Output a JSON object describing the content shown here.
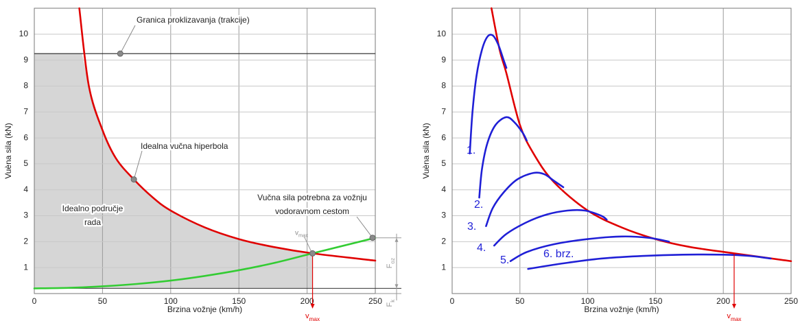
{
  "chart_data": [
    {
      "type": "line",
      "xlabel": "Brzina vožnje (km/h)",
      "ylabel": "Vuèna sila (kN)",
      "xlim": [
        0,
        250
      ],
      "ylim": [
        0,
        11
      ],
      "xticks": [
        0,
        50,
        100,
        150,
        200,
        250
      ],
      "yticks": [
        1,
        2,
        3,
        4,
        5,
        6,
        7,
        8,
        9,
        10
      ],
      "grid": true,
      "area": {
        "color": "#d6d6d6",
        "x": [
          0,
          35,
          40,
          50,
          60,
          73,
          87,
          100,
          125,
          150,
          175,
          204
        ],
        "values": [
          9.25,
          9.25,
          8,
          6.3,
          5.2,
          4.4,
          3.7,
          3.2,
          2.55,
          2.1,
          1.8,
          1.55
        ]
      },
      "traction_limit": {
        "value": 9.25,
        "color": "#222222"
      },
      "fk_line": 0.2,
      "series": [
        {
          "color": "#e00000",
          "x": [
            33,
            40,
            50,
            60,
            73,
            87,
            100,
            125,
            150,
            175,
            204,
            250
          ],
          "values": [
            11,
            8,
            6.3,
            5.2,
            4.4,
            3.7,
            3.2,
            2.55,
            2.1,
            1.8,
            1.55,
            1.27
          ]
        },
        {
          "color": "#33cc33",
          "x": [
            0,
            25,
            50,
            75,
            100,
            125,
            150,
            175,
            204,
            250
          ],
          "values": [
            0.2,
            0.22,
            0.28,
            0.37,
            0.5,
            0.68,
            0.9,
            1.17,
            1.55,
            2.15
          ]
        }
      ],
      "points": {
        "color": "#8a8a8a",
        "x": [
          63,
          73,
          204,
          248
        ],
        "values": [
          9.25,
          4.4,
          1.55,
          2.15
        ]
      },
      "annotations": [
        {
          "lines": [
            "Granica proklizavanja (trakcije)"
          ]
        },
        {
          "lines": [
            "Idealna vučna hiperbola"
          ]
        },
        {
          "lines": [
            "Idealno područje",
            "rada"
          ]
        },
        {
          "lines": [
            "Vučna sila potrebna za vožnju",
            "vodoravnom cestom"
          ]
        }
      ],
      "vmax": {
        "value": 204,
        "force": 1.55,
        "color": "#e00000",
        "labels": [
          {
            "base": "v",
            "sub": "max"
          },
          {
            "base": "v",
            "sub": "max"
          }
        ]
      },
      "dimensions": [
        {
          "base": "F",
          "sub": "oz"
        },
        {
          "base": "F",
          "sub": "k"
        }
      ]
    },
    {
      "type": "line",
      "xlabel": "Brzina vožnje (km/h)",
      "ylabel": "Vuèna sila (kN)",
      "xlim": [
        0,
        250
      ],
      "ylim": [
        0,
        11
      ],
      "xticks": [
        0,
        50,
        100,
        150,
        200,
        250
      ],
      "yticks": [
        1,
        2,
        3,
        4,
        5,
        6,
        7,
        8,
        9,
        10
      ],
      "grid": true,
      "series": [
        {
          "color": "#e00000",
          "x": [
            29,
            35,
            40,
            50,
            60,
            75,
            100,
            125,
            150,
            175,
            208,
            250
          ],
          "values": [
            11,
            9.4,
            8.5,
            6.5,
            5.4,
            4.3,
            3.2,
            2.55,
            2.1,
            1.8,
            1.55,
            1.25
          ]
        },
        {
          "name": "1.",
          "color": "#1f1fd6",
          "x": [
            13,
            15,
            18,
            22,
            26,
            30,
            34,
            38,
            40
          ],
          "values": [
            5.4,
            7,
            8.4,
            9.4,
            9.9,
            9.95,
            9.6,
            9.0,
            8.7
          ]
        },
        {
          "name": "2.",
          "color": "#1f1fd6",
          "x": [
            20,
            22,
            26,
            32,
            40,
            46,
            52,
            55
          ],
          "values": [
            3.7,
            4.8,
            5.8,
            6.5,
            6.8,
            6.6,
            6.2,
            5.9
          ]
        },
        {
          "name": "3.",
          "color": "#1f1fd6",
          "x": [
            25,
            30,
            38,
            48,
            60,
            68,
            75,
            82
          ],
          "values": [
            2.6,
            3.3,
            3.9,
            4.4,
            4.65,
            4.6,
            4.35,
            4.1
          ]
        },
        {
          "name": "4.",
          "color": "#1f1fd6",
          "x": [
            31,
            40,
            55,
            70,
            85,
            98,
            110,
            114
          ],
          "values": [
            1.85,
            2.3,
            2.75,
            3.05,
            3.2,
            3.2,
            3.0,
            2.85
          ]
        },
        {
          "name": "5.",
          "color": "#1f1fd6",
          "x": [
            43,
            55,
            75,
            100,
            125,
            145,
            160
          ],
          "values": [
            1.25,
            1.6,
            1.9,
            2.1,
            2.2,
            2.15,
            2.0
          ]
        },
        {
          "name": "6. brz.",
          "color": "#1f1fd6",
          "x": [
            56,
            80,
            110,
            140,
            170,
            200,
            220,
            235
          ],
          "values": [
            0.95,
            1.15,
            1.35,
            1.45,
            1.5,
            1.5,
            1.45,
            1.35
          ]
        }
      ],
      "vmax": {
        "value": 208,
        "force": 1.55,
        "color": "#e00000",
        "labels": [
          {
            "base": "v",
            "sub": "max"
          }
        ]
      }
    }
  ]
}
